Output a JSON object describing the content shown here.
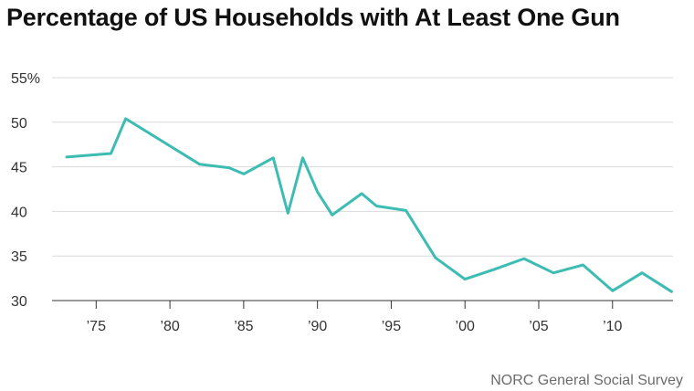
{
  "title": "Percentage of US Households with At Least One Gun",
  "source": "NORC General Social Survey",
  "chart_data": {
    "type": "line",
    "title": "Percentage of US Households with At Least One Gun",
    "xlabel": "",
    "ylabel": "",
    "xlim": [
      1973,
      2014
    ],
    "ylim": [
      30,
      55
    ],
    "grid": true,
    "y_ticks": [
      {
        "value": 55,
        "label": "55%"
      },
      {
        "value": 50,
        "label": "50"
      },
      {
        "value": 45,
        "label": "45"
      },
      {
        "value": 40,
        "label": "40"
      },
      {
        "value": 35,
        "label": "35"
      },
      {
        "value": 30,
        "label": "30"
      }
    ],
    "x_ticks": [
      {
        "value": 1975,
        "label": "’75"
      },
      {
        "value": 1980,
        "label": "’80"
      },
      {
        "value": 1985,
        "label": "’85"
      },
      {
        "value": 1990,
        "label": "’90"
      },
      {
        "value": 1995,
        "label": "’95"
      },
      {
        "value": 2000,
        "label": "’00"
      },
      {
        "value": 2005,
        "label": "’05"
      },
      {
        "value": 2010,
        "label": "’10"
      }
    ],
    "series": [
      {
        "color": "#3dbcb4",
        "x": [
          1973,
          1976,
          1977,
          1982,
          1984,
          1985,
          1987,
          1988,
          1989,
          1990,
          1991,
          1993,
          1994,
          1996,
          1998,
          2000,
          2002,
          2004,
          2006,
          2008,
          2010,
          2012,
          2014
        ],
        "values": [
          46.1,
          46.5,
          50.4,
          45.3,
          44.9,
          44.2,
          46.0,
          39.8,
          46.0,
          42.2,
          39.6,
          42.0,
          40.6,
          40.1,
          34.8,
          32.4,
          33.5,
          34.7,
          33.1,
          34.0,
          31.1,
          33.1,
          31.0
        ]
      }
    ]
  }
}
